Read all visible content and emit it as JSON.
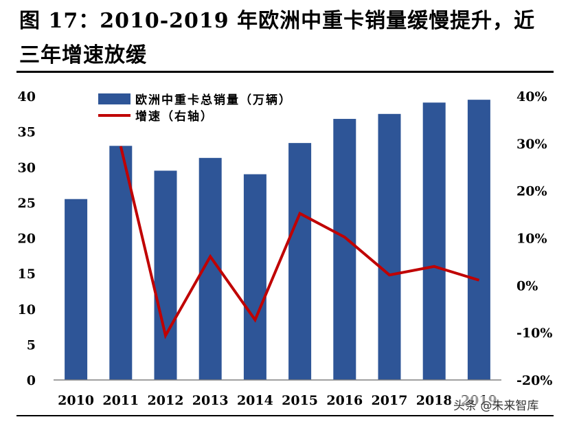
{
  "figure": {
    "title_line1": "图 17：2010-2019 年欧洲中重卡销量缓慢提升，近",
    "title_line2": "三年增速放缓"
  },
  "watermark": "头条 @未来智库",
  "chart_data": {
    "type": "bar",
    "categories": [
      "2010",
      "2011",
      "2012",
      "2013",
      "2014",
      "2015",
      "2016",
      "2017",
      "2018",
      "2019"
    ],
    "series": [
      {
        "name": "欧洲中重卡总销量（万辆）",
        "type": "bar",
        "axis": "left",
        "color": "#2e5597",
        "values": [
          25.5,
          33.0,
          29.5,
          31.3,
          29.0,
          33.4,
          36.8,
          37.5,
          39.1,
          39.5
        ]
      },
      {
        "name": "增速（右轴）",
        "type": "line",
        "axis": "right",
        "color": "#c00000",
        "values": [
          null,
          29.4,
          -10.6,
          6.1,
          -7.3,
          15.2,
          10.2,
          2.2,
          4.0,
          1.1
        ]
      }
    ],
    "left_axis": {
      "ylim": [
        0,
        40
      ],
      "ticks": [
        "0",
        "5",
        "10",
        "15",
        "20",
        "25",
        "30",
        "35",
        "40"
      ]
    },
    "right_axis": {
      "ylim": [
        -20,
        40
      ],
      "ticks": [
        "-20%",
        "-10%",
        "0%",
        "10%",
        "20%",
        "30%",
        "40%"
      ]
    },
    "legend_position": "top-left",
    "grid": false
  }
}
